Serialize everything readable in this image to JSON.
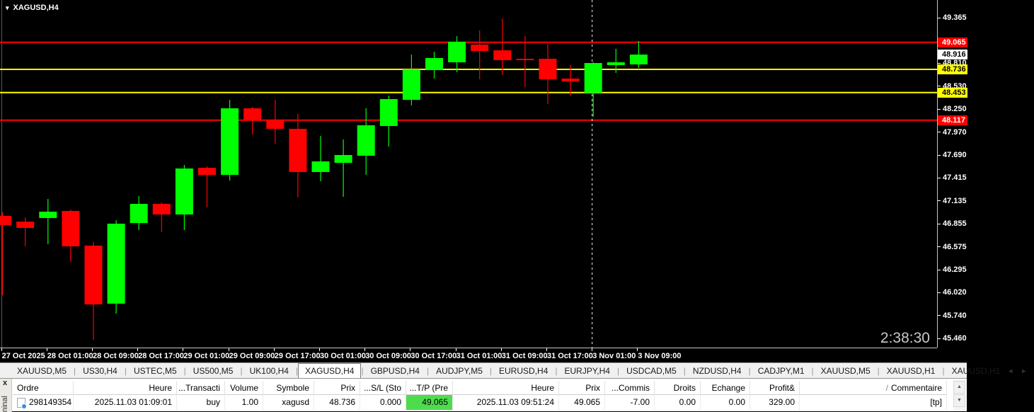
{
  "window": {
    "title_symbol": "XAGUSD,H4"
  },
  "chart": {
    "symbol_label": "XAGUSD,H4",
    "countdown": "2:38:30",
    "colors": {
      "background": "#000000",
      "bull_candle": "#00ff00",
      "bear_candle": "#ff0000",
      "resistance_line": "#ff0000",
      "pivot_line": "#ffff00",
      "axis_text": "#ffffff",
      "separator_line": "#ffffff"
    }
  },
  "chart_data": {
    "type": "candlestick",
    "title": "XAGUSD,H4",
    "symbol": "XAGUSD",
    "timeframe": "H4",
    "ylim": [
      45.46,
      49.365
    ],
    "grid": false,
    "y_ticks": [
      49.365,
      48.81,
      48.53,
      48.25,
      47.97,
      47.69,
      47.415,
      47.135,
      46.855,
      46.575,
      46.295,
      46.02,
      45.74,
      45.46
    ],
    "x_labels": [
      {
        "index": 0,
        "label": "27 Oct 2025"
      },
      {
        "index": 2,
        "label": "28 Oct 01:00"
      },
      {
        "index": 4,
        "label": "28 Oct 09:00"
      },
      {
        "index": 6,
        "label": "28 Oct 17:00"
      },
      {
        "index": 8,
        "label": "29 Oct 01:00"
      },
      {
        "index": 10,
        "label": "29 Oct 09:00"
      },
      {
        "index": 12,
        "label": "29 Oct 17:00"
      },
      {
        "index": 14,
        "label": "30 Oct 01:00"
      },
      {
        "index": 16,
        "label": "30 Oct 09:00"
      },
      {
        "index": 18,
        "label": "30 Oct 17:00"
      },
      {
        "index": 20,
        "label": "31 Oct 01:00"
      },
      {
        "index": 22,
        "label": "31 Oct 09:00"
      },
      {
        "index": 24,
        "label": "31 Oct 17:00"
      },
      {
        "index": 26,
        "label": "3 Nov 01:00"
      },
      {
        "index": 28,
        "label": "3 Nov 09:00"
      }
    ],
    "candles": [
      {
        "time": "27 Oct 17:00",
        "open": 46.951,
        "high": 46.995,
        "low": 45.986,
        "close": 46.839
      },
      {
        "time": "27 Oct 21:00",
        "open": 46.882,
        "high": 46.934,
        "low": 46.581,
        "close": 46.805
      },
      {
        "time": "28 Oct 01:00",
        "open": 46.926,
        "high": 47.158,
        "low": 46.607,
        "close": 47.003
      },
      {
        "time": "28 Oct 05:00",
        "open": 47.012,
        "high": 47.029,
        "low": 46.391,
        "close": 46.581
      },
      {
        "time": "28 Oct 09:00",
        "open": 46.59,
        "high": 46.633,
        "low": 45.443,
        "close": 45.874
      },
      {
        "time": "28 Oct 13:00",
        "open": 45.883,
        "high": 46.9,
        "low": 45.762,
        "close": 46.857
      },
      {
        "time": "28 Oct 17:00",
        "open": 46.865,
        "high": 47.193,
        "low": 46.779,
        "close": 47.098
      },
      {
        "time": "28 Oct 21:00",
        "open": 47.098,
        "high": 47.115,
        "low": 46.753,
        "close": 46.969
      },
      {
        "time": "29 Oct 01:00",
        "open": 46.969,
        "high": 47.572,
        "low": 46.779,
        "close": 47.529
      },
      {
        "time": "29 Oct 05:00",
        "open": 47.538,
        "high": 47.555,
        "low": 47.055,
        "close": 47.451
      },
      {
        "time": "29 Oct 09:00",
        "open": 47.451,
        "high": 48.365,
        "low": 47.382,
        "close": 48.262
      },
      {
        "time": "29 Oct 13:00",
        "open": 48.262,
        "high": 48.279,
        "low": 47.943,
        "close": 48.124
      },
      {
        "time": "29 Oct 17:00",
        "open": 48.124,
        "high": 48.365,
        "low": 47.831,
        "close": 48.012
      },
      {
        "time": "29 Oct 21:00",
        "open": 48.012,
        "high": 48.193,
        "low": 47.176,
        "close": 47.486
      },
      {
        "time": "30 Oct 01:00",
        "open": 47.486,
        "high": 47.926,
        "low": 47.374,
        "close": 47.615
      },
      {
        "time": "30 Oct 05:00",
        "open": 47.598,
        "high": 47.882,
        "low": 47.184,
        "close": 47.693
      },
      {
        "time": "30 Oct 09:00",
        "open": 47.684,
        "high": 48.262,
        "low": 47.451,
        "close": 48.055
      },
      {
        "time": "30 Oct 13:00",
        "open": 48.046,
        "high": 48.417,
        "low": 47.796,
        "close": 48.374
      },
      {
        "time": "30 Oct 17:00",
        "open": 48.365,
        "high": 48.917,
        "low": 48.296,
        "close": 48.736
      },
      {
        "time": "30 Oct 21:00",
        "open": 48.727,
        "high": 48.951,
        "low": 48.624,
        "close": 48.874
      },
      {
        "time": "31 Oct 01:00",
        "open": 48.822,
        "high": 49.141,
        "low": 48.701,
        "close": 49.072
      },
      {
        "time": "31 Oct 05:00",
        "open": 49.037,
        "high": 49.21,
        "low": 48.615,
        "close": 48.96
      },
      {
        "time": "31 Oct 09:00",
        "open": 48.968,
        "high": 49.356,
        "low": 48.667,
        "close": 48.848
      },
      {
        "time": "31 Oct 13:00",
        "open": 48.865,
        "high": 49.141,
        "low": 48.52,
        "close": 48.848
      },
      {
        "time": "31 Oct 17:00",
        "open": 48.865,
        "high": 49.046,
        "low": 48.313,
        "close": 48.615
      },
      {
        "time": "31 Oct 21:00",
        "open": 48.624,
        "high": 48.788,
        "low": 48.417,
        "close": 48.589
      },
      {
        "time": "3 Nov 01:00",
        "open": 48.451,
        "high": 48.822,
        "low": 48.158,
        "close": 48.813
      },
      {
        "time": "3 Nov 05:00",
        "open": 48.788,
        "high": 48.986,
        "low": 48.693,
        "close": 48.822
      },
      {
        "time": "3 Nov 09:00",
        "open": 48.796,
        "high": 49.081,
        "low": 48.753,
        "close": 48.916
      }
    ],
    "hlines": [
      {
        "price": 49.065,
        "label": "49.065",
        "color": "#ff0000",
        "label_bg": "#ff0000",
        "label_fg": "#ffffff"
      },
      {
        "price": 48.736,
        "label": "48.736",
        "color": "#ffff00",
        "label_bg": "#ffff00",
        "label_fg": "#000000"
      },
      {
        "price": 48.453,
        "label": "48.453",
        "color": "#ffff00",
        "label_bg": "#ffff00",
        "label_fg": "#000000"
      },
      {
        "price": 48.117,
        "label": "48.117",
        "color": "#ff0000",
        "label_bg": "#ff0000",
        "label_fg": "#ffffff"
      }
    ],
    "current_price": {
      "price": 48.916,
      "label": "48.916",
      "label_bg": "#ffffff",
      "label_fg": "#000000"
    },
    "period_separator": {
      "index": 26,
      "label": "3 Nov 01:00",
      "color": "#ffffff",
      "style": "dashed"
    },
    "legend_position": "none"
  },
  "icons": {
    "dropdown": "▾",
    "scroll_left": "◄",
    "scroll_right": "►",
    "scroll_up": "▲",
    "scroll_down": "▼",
    "close": "x"
  },
  "tabs": {
    "items": [
      {
        "label": "XAUUSD,M5",
        "active": false
      },
      {
        "label": "US30,H4",
        "active": false
      },
      {
        "label": "USTEC,M5",
        "active": false
      },
      {
        "label": "US500,M5",
        "active": false
      },
      {
        "label": "UK100,H4",
        "active": false
      },
      {
        "label": "XAGUSD,H4",
        "active": true
      },
      {
        "label": "GBPUSD,H4",
        "active": false
      },
      {
        "label": "AUDJPY,M5",
        "active": false
      },
      {
        "label": "EURUSD,H4",
        "active": false
      },
      {
        "label": "EURJPY,H4",
        "active": false
      },
      {
        "label": "USDCAD,M5",
        "active": false
      },
      {
        "label": "NZDUSD,H4",
        "active": false
      },
      {
        "label": "CADJPY,M1",
        "active": false
      },
      {
        "label": "XAUUSD,M5",
        "active": false
      },
      {
        "label": "XAUUSD,H1",
        "active": false
      },
      {
        "label": "XAUUSD,H1",
        "active": false
      }
    ],
    "separator": "|"
  },
  "terminal": {
    "side_label": "ninal",
    "table": {
      "sort_indicator": "/",
      "columns": [
        "Ordre",
        "Heure",
        "Transacti...",
        "Volume",
        "Symbole",
        "Prix",
        "S/L (Sto...",
        "T/P (Pre...",
        "Heure",
        "Prix",
        "Commis...",
        "Droits",
        "Echange",
        "&Profit",
        "Commentaire"
      ],
      "rows": [
        [
          "298149354",
          "2025.11.03 01:09:01",
          "buy",
          "1.00",
          "xagusd",
          "48.736",
          "0.000",
          "49.065",
          "2025.11.03 09:51:24",
          "49.065",
          "-7.00",
          "0.00",
          "0.00",
          "329.00",
          "[tp]"
        ]
      ],
      "highlight": {
        "row": 0,
        "col": 7,
        "bg": "#4edc4e"
      }
    }
  }
}
